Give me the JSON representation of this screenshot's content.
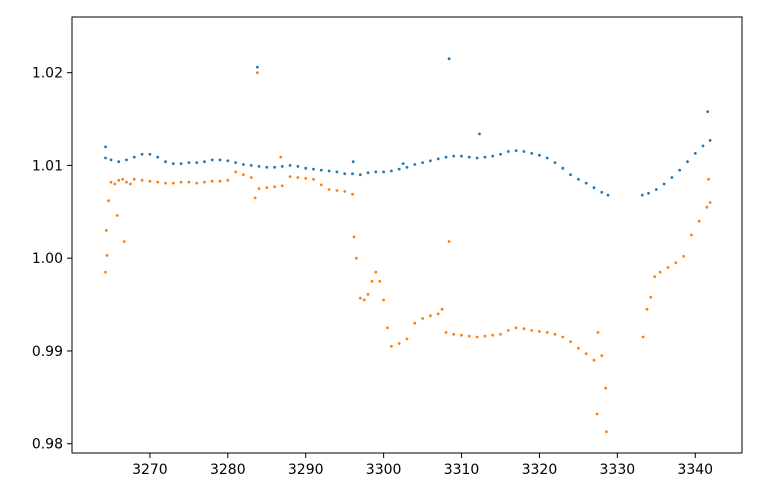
{
  "chart_data": {
    "type": "scatter",
    "title": "",
    "xlabel": "",
    "ylabel": "",
    "xlim": [
      3260.0,
      3346.0
    ],
    "ylim": [
      0.979,
      1.026
    ],
    "grid": false,
    "legend": "none",
    "xticks": [
      3270,
      3280,
      3290,
      3300,
      3310,
      3320,
      3330,
      3340
    ],
    "xtick_labels": [
      "3270",
      "3280",
      "3290",
      "3300",
      "3310",
      "3320",
      "3330",
      "3340"
    ],
    "yticks": [
      0.98,
      0.99,
      1.0,
      1.01,
      1.02
    ],
    "ytick_labels": [
      "0.98",
      "0.99",
      "1.00",
      "1.01",
      "1.02"
    ],
    "series": [
      {
        "color": "#1f77b4",
        "x": [
          3264.3,
          3265.0,
          3266.0,
          3267.0,
          3268.0,
          3269.0,
          3270.0,
          3271.0,
          3272.0,
          3273.0,
          3274.0,
          3275.0,
          3276.0,
          3277.0,
          3278.0,
          3279.0,
          3280.0,
          3281.0,
          3282.0,
          3283.0,
          3284.0,
          3285.0,
          3286.0,
          3287.0,
          3288.0,
          3289.0,
          3290.0,
          3291.0,
          3292.0,
          3293.0,
          3294.0,
          3295.0,
          3296.0,
          3297.0,
          3298.0,
          3299.0,
          3300.0,
          3301.0,
          3302.0,
          3303.0,
          3304.0,
          3305.0,
          3306.0,
          3307.0,
          3308.0,
          3309.0,
          3310.0,
          3311.0,
          3312.0,
          3313.0,
          3314.0,
          3315.0,
          3316.0,
          3317.0,
          3318.0,
          3319.0,
          3320.0,
          3321.0,
          3322.0,
          3323.0,
          3324.0,
          3325.0,
          3326.0,
          3327.0,
          3328.0,
          3328.8,
          3333.2,
          3334.0,
          3335.0,
          3336.0,
          3337.0,
          3338.0,
          3339.0,
          3340.0,
          3341.0,
          3341.9,
          3283.8,
          3308.4,
          3312.3,
          3341.6,
          3264.3,
          3296.1,
          3302.5
        ],
        "y": [
          1.0108,
          1.0106,
          1.0104,
          1.0106,
          1.0109,
          1.0112,
          1.0112,
          1.0109,
          1.0104,
          1.0102,
          1.0102,
          1.0103,
          1.0103,
          1.0104,
          1.0106,
          1.0106,
          1.0105,
          1.0103,
          1.0101,
          1.01,
          1.0099,
          1.0098,
          1.0098,
          1.0099,
          1.01,
          1.0099,
          1.0097,
          1.0096,
          1.0095,
          1.0094,
          1.0093,
          1.0091,
          1.0091,
          1.009,
          1.0092,
          1.0093,
          1.0093,
          1.0094,
          1.0096,
          1.0098,
          1.0101,
          1.0103,
          1.0105,
          1.0107,
          1.0109,
          1.011,
          1.011,
          1.0109,
          1.0108,
          1.0109,
          1.011,
          1.0112,
          1.0115,
          1.0116,
          1.0115,
          1.0113,
          1.0111,
          1.0108,
          1.0103,
          1.0097,
          1.009,
          1.0085,
          1.0081,
          1.0076,
          1.0071,
          1.0068,
          1.0068,
          1.007,
          1.0074,
          1.008,
          1.0087,
          1.0095,
          1.0104,
          1.0113,
          1.0121,
          1.0127,
          1.0206,
          1.0215,
          1.0134,
          1.0158,
          1.012,
          1.0104,
          1.0102
        ]
      },
      {
        "color": "#ff7f0e",
        "x": [
          3264.3,
          3264.5,
          3264.7,
          3265.0,
          3265.5,
          3266.0,
          3266.5,
          3267.0,
          3267.5,
          3268.0,
          3269.0,
          3270.0,
          3271.0,
          3272.0,
          3273.0,
          3274.0,
          3275.0,
          3276.0,
          3277.0,
          3278.0,
          3279.0,
          3280.0,
          3281.0,
          3282.0,
          3283.0,
          3283.5,
          3284.0,
          3285.0,
          3286.0,
          3287.0,
          3288.0,
          3289.0,
          3290.0,
          3291.0,
          3292.0,
          3293.0,
          3294.0,
          3295.0,
          3296.0,
          3296.2,
          3296.5,
          3297.0,
          3297.5,
          3298.0,
          3298.5,
          3299.0,
          3299.5,
          3300.0,
          3300.5,
          3301.0,
          3302.0,
          3303.0,
          3304.0,
          3305.0,
          3306.0,
          3307.0,
          3307.5,
          3308.0,
          3309.0,
          3310.0,
          3311.0,
          3312.0,
          3313.0,
          3314.0,
          3315.0,
          3316.0,
          3317.0,
          3318.0,
          3319.0,
          3320.0,
          3321.0,
          3322.0,
          3323.0,
          3324.0,
          3325.0,
          3326.0,
          3327.0,
          3327.5,
          3328.0,
          3328.5,
          3333.3,
          3333.8,
          3334.3,
          3334.8,
          3335.5,
          3336.5,
          3337.5,
          3338.5,
          3339.5,
          3340.5,
          3341.5,
          3341.9,
          3264.4,
          3265.8,
          3266.7,
          3283.8,
          3286.8,
          3308.4,
          3327.4,
          3328.6,
          3341.7
        ],
        "y": [
          0.9985,
          1.0003,
          1.0062,
          1.0082,
          1.008,
          1.0084,
          1.0085,
          1.0082,
          1.008,
          1.0085,
          1.0084,
          1.0083,
          1.0082,
          1.0081,
          1.0081,
          1.0082,
          1.0082,
          1.0081,
          1.0082,
          1.0083,
          1.0083,
          1.0084,
          1.0093,
          1.009,
          1.0087,
          1.0065,
          1.0075,
          1.0076,
          1.0077,
          1.0078,
          1.0088,
          1.0087,
          1.0086,
          1.0085,
          1.0079,
          1.0074,
          1.0073,
          1.0072,
          1.0069,
          1.0023,
          1.0,
          0.9957,
          0.9955,
          0.9961,
          0.9975,
          0.9985,
          0.9975,
          0.9955,
          0.9925,
          0.9905,
          0.9908,
          0.9913,
          0.993,
          0.9935,
          0.9938,
          0.994,
          0.9945,
          0.992,
          0.9918,
          0.9917,
          0.9916,
          0.9915,
          0.9916,
          0.9917,
          0.9918,
          0.9922,
          0.9925,
          0.9924,
          0.9922,
          0.9921,
          0.992,
          0.9918,
          0.9915,
          0.991,
          0.9903,
          0.9897,
          0.989,
          0.992,
          0.9895,
          0.986,
          0.9915,
          0.9945,
          0.9958,
          0.998,
          0.9985,
          0.999,
          0.9995,
          1.0002,
          1.0025,
          1.004,
          1.0055,
          1.006,
          1.003,
          1.0046,
          1.0018,
          1.02,
          1.0109,
          1.0018,
          0.9832,
          0.9813,
          1.0085
        ]
      }
    ]
  }
}
